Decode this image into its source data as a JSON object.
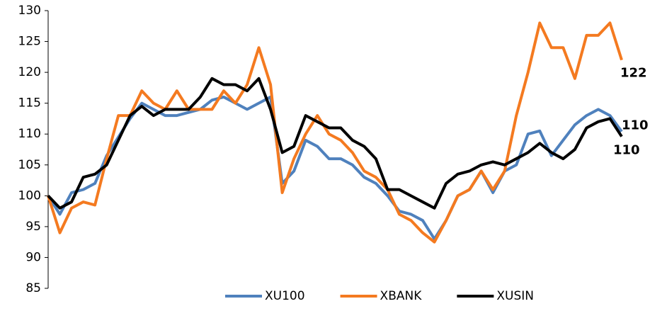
{
  "chart_data": {
    "type": "line",
    "categories": [
      null,
      null,
      null,
      null,
      null,
      null,
      null,
      null,
      null,
      null,
      null,
      null,
      null,
      null,
      null,
      null,
      null,
      null,
      null,
      null,
      null,
      null,
      null,
      null,
      null,
      null,
      null,
      null,
      null,
      null,
      null,
      null,
      null,
      null,
      null,
      null,
      null,
      null,
      null,
      null,
      null,
      null,
      null,
      null,
      null,
      null,
      null,
      null,
      null,
      null
    ],
    "series": [
      {
        "name": "XU100",
        "color": "#4f81bd",
        "end_label": "110",
        "values": [
          100,
          97,
          100.5,
          101,
          102,
          106.5,
          109.5,
          112.5,
          115,
          114,
          113,
          113,
          113.5,
          114,
          115.5,
          116,
          115,
          114,
          115,
          116,
          102,
          104,
          109,
          108,
          106,
          106,
          105,
          103,
          102,
          100,
          97.5,
          97,
          96,
          93,
          96,
          100,
          101,
          104,
          100.5,
          104,
          105,
          110,
          110.5,
          106.5,
          109,
          111.5,
          113,
          114,
          113,
          110.4
        ]
      },
      {
        "name": "XBANK",
        "color": "#f47a20",
        "end_label": "122",
        "values": [
          100,
          94,
          98,
          99,
          98.5,
          106,
          113,
          113,
          117,
          115,
          114,
          117,
          114,
          114,
          114,
          117,
          115,
          118,
          124,
          118,
          100.5,
          106,
          110,
          113,
          110,
          109,
          107,
          104,
          103,
          101,
          97,
          96,
          94,
          92.5,
          96,
          100,
          101,
          104,
          101,
          104,
          113,
          120,
          128,
          124,
          124,
          119,
          126,
          126,
          128,
          122
        ]
      },
      {
        "name": "XUSIN",
        "color": "#000000",
        "end_label": "110",
        "values": [
          100,
          98,
          99,
          103,
          103.5,
          105,
          109,
          113,
          114.5,
          113,
          114,
          114,
          114,
          116,
          119,
          118,
          118,
          117,
          119,
          114,
          107,
          108,
          113,
          112,
          111,
          111,
          109,
          108,
          106,
          101,
          101,
          100,
          99,
          98,
          102,
          103.5,
          104,
          105,
          105.5,
          105,
          106,
          107,
          108.5,
          107,
          106,
          107.5,
          111,
          112,
          112.5,
          109.6
        ]
      }
    ],
    "ylim": [
      85,
      130
    ],
    "yticks": [
      85,
      90,
      95,
      100,
      105,
      110,
      115,
      120,
      125,
      130
    ],
    "grid": false,
    "legend": "bottom"
  }
}
